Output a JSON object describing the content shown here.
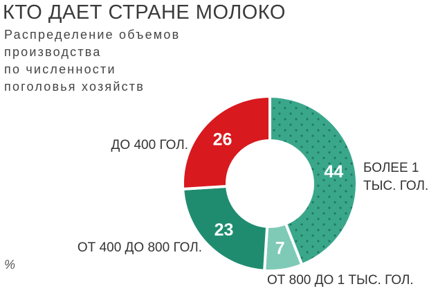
{
  "chart_data": {
    "type": "donut",
    "title": "КТО ДАЕТ СТРАНЕ МОЛОКО",
    "subtitle": [
      "Распределение объемов",
      "производства",
      "по численности",
      "поголовья хозяйств"
    ],
    "unit": "%",
    "categories": [
      "БОЛЕЕ 1 ТЫС. ГОЛ.",
      "ОТ 800 ДО 1 ТЫС. ГОЛ.",
      "ОТ 400 ДО 800 ГОЛ.",
      "ДО 400 ГОЛ."
    ],
    "values": [
      44,
      7,
      23,
      26
    ],
    "colors": [
      "#3aa78b",
      "#7ecab6",
      "#1f8c70",
      "#d8191e"
    ]
  }
}
